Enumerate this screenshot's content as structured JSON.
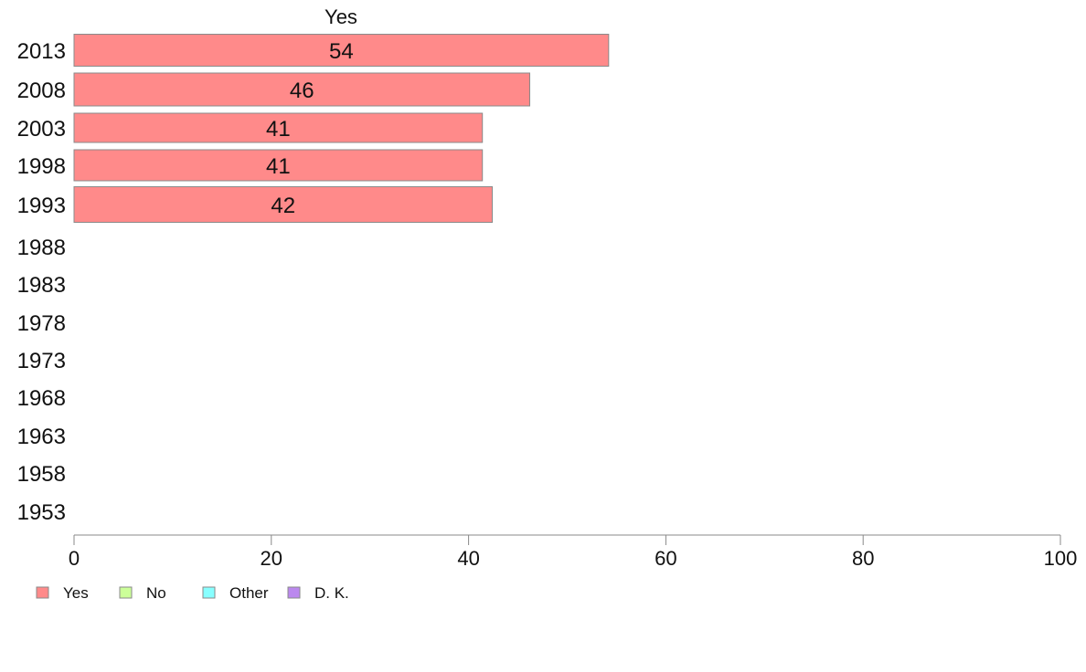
{
  "chart_data": {
    "type": "bar",
    "orientation": "horizontal",
    "title": "Yes",
    "categories": [
      "2013",
      "2008",
      "2003",
      "1998",
      "1993",
      "1988",
      "1983",
      "1978",
      "1973",
      "1968",
      "1963",
      "1958",
      "1953"
    ],
    "series": [
      {
        "name": "Yes",
        "color": "#ff8a8a",
        "values": [
          54.2,
          46.2,
          41.4,
          41.4,
          42.4,
          null,
          null,
          null,
          null,
          null,
          null,
          null,
          null
        ]
      }
    ],
    "value_labels": [
      "54",
      "46",
      "41",
      "41",
      "42",
      "",
      "",
      "",
      "",
      "",
      "",
      "",
      ""
    ],
    "xlim": [
      0,
      100
    ],
    "xticks": [
      0,
      20,
      40,
      60,
      80,
      100
    ],
    "grid": false,
    "legend": {
      "placement": "bottom-left",
      "items": [
        {
          "label": "Yes",
          "color": "#ff8a8a"
        },
        {
          "label": "No",
          "color": "#ccff99"
        },
        {
          "label": "Other",
          "color": "#88ffff"
        },
        {
          "label": "D. K.",
          "color": "#bb88ee"
        }
      ]
    }
  }
}
